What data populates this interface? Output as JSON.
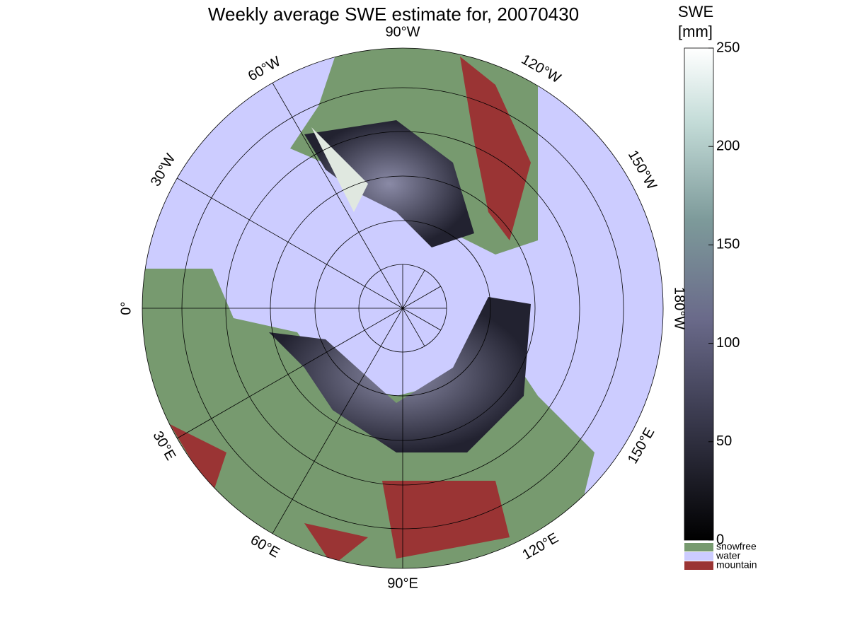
{
  "title": "Weekly average SWE estimate for, 20070430",
  "longitude_labels": [
    "90°W",
    "120°W",
    "150°W",
    "180°W",
    "150°E",
    "120°E",
    "90°E",
    "60°E",
    "30°E",
    "0°",
    "30°W",
    "60°W"
  ],
  "colorbar": {
    "title": [
      "SWE",
      "[mm]"
    ],
    "lim": [
      0,
      250
    ],
    "ticks": [
      0,
      50,
      100,
      150,
      200,
      250
    ]
  },
  "legend": [
    {
      "name": "snowfree",
      "color": "#779a6f"
    },
    {
      "name": "water",
      "color": "#ccccff"
    },
    {
      "name": "mountain",
      "color": "#9a3434"
    }
  ]
}
